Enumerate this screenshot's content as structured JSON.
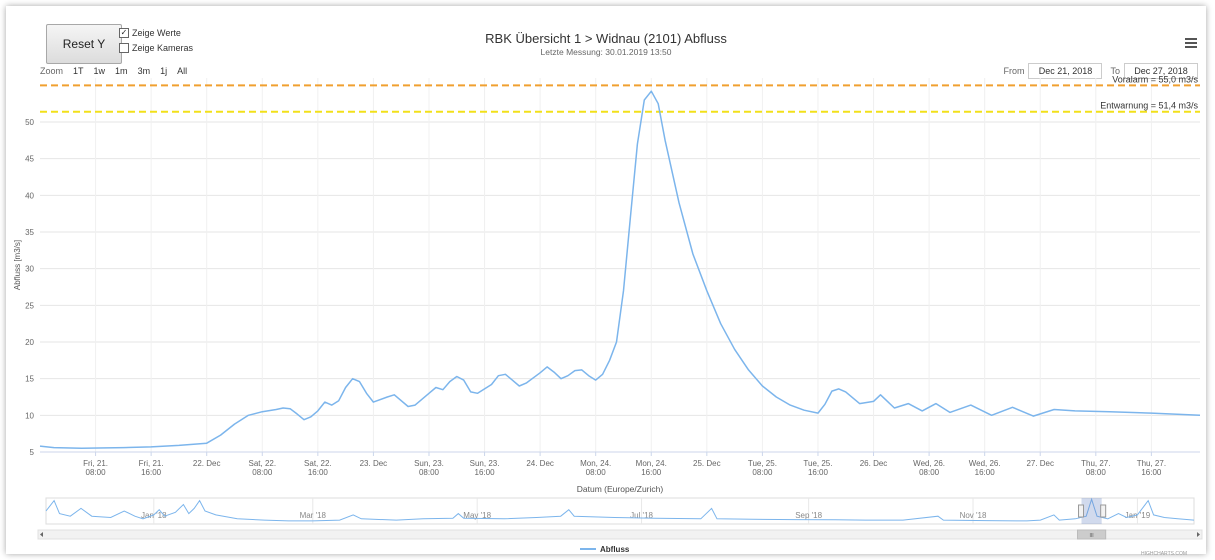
{
  "toolbar": {
    "reset_label": "Reset Y",
    "show_values_label": "Zeige Werte",
    "show_values_checked": true,
    "show_cameras_label": "Zeige Kameras",
    "show_cameras_checked": false
  },
  "menu_icon": "hamburger-menu-icon",
  "zoom": {
    "label": "Zoom",
    "buttons": [
      "1T",
      "1w",
      "1m",
      "3m",
      "1j",
      "All"
    ]
  },
  "range": {
    "from_label": "From",
    "from_value": "Dec 21, 2018",
    "to_label": "To",
    "to_value": "Dec 27, 2018"
  },
  "credits": "HIGHCHARTS.COM",
  "chart_data": {
    "type": "line",
    "title": "RBK Übersicht 1 > Widnau (2101) Abfluss",
    "subtitle": "Letzte Messung: 30.01.2019 13:50",
    "xlabel": "Datum (Europe/Zurich)",
    "ylabel": "Abfluss [m3/s]",
    "ylim": [
      5,
      56
    ],
    "yticks": [
      5,
      10,
      15,
      20,
      25,
      30,
      35,
      40,
      45,
      50
    ],
    "xlim": [
      "2018-12-21 00:00",
      "2018-12-27 23:00"
    ],
    "grid": true,
    "legend_position": "bottom-center",
    "x_ticks": [
      {
        "x": "2018-12-21 08:00",
        "lines": [
          "Fri, 21.",
          "08:00"
        ]
      },
      {
        "x": "2018-12-21 16:00",
        "lines": [
          "Fri, 21.",
          "16:00"
        ]
      },
      {
        "x": "2018-12-22 00:00",
        "lines": [
          "22. Dec"
        ]
      },
      {
        "x": "2018-12-22 08:00",
        "lines": [
          "Sat, 22.",
          "08:00"
        ]
      },
      {
        "x": "2018-12-22 16:00",
        "lines": [
          "Sat, 22.",
          "16:00"
        ]
      },
      {
        "x": "2018-12-23 00:00",
        "lines": [
          "23. Dec"
        ]
      },
      {
        "x": "2018-12-23 08:00",
        "lines": [
          "Sun, 23.",
          "08:00"
        ]
      },
      {
        "x": "2018-12-23 16:00",
        "lines": [
          "Sun, 23.",
          "16:00"
        ]
      },
      {
        "x": "2018-12-24 00:00",
        "lines": [
          "24. Dec"
        ]
      },
      {
        "x": "2018-12-24 08:00",
        "lines": [
          "Mon, 24.",
          "08:00"
        ]
      },
      {
        "x": "2018-12-24 16:00",
        "lines": [
          "Mon, 24.",
          "16:00"
        ]
      },
      {
        "x": "2018-12-25 00:00",
        "lines": [
          "25. Dec"
        ]
      },
      {
        "x": "2018-12-25 08:00",
        "lines": [
          "Tue, 25.",
          "08:00"
        ]
      },
      {
        "x": "2018-12-25 16:00",
        "lines": [
          "Tue, 25.",
          "16:00"
        ]
      },
      {
        "x": "2018-12-26 00:00",
        "lines": [
          "26. Dec"
        ]
      },
      {
        "x": "2018-12-26 08:00",
        "lines": [
          "Wed, 26.",
          "08:00"
        ]
      },
      {
        "x": "2018-12-26 16:00",
        "lines": [
          "Wed, 26.",
          "16:00"
        ]
      },
      {
        "x": "2018-12-27 00:00",
        "lines": [
          "27. Dec"
        ]
      },
      {
        "x": "2018-12-27 08:00",
        "lines": [
          "Thu, 27.",
          "08:00"
        ]
      },
      {
        "x": "2018-12-27 16:00",
        "lines": [
          "Thu, 27.",
          "16:00"
        ]
      }
    ],
    "thresholds": [
      {
        "label": "Voralarm = 55,0 m3/s",
        "value": 55.0,
        "color": "#f0a030"
      },
      {
        "label": "Entwarnung = 51,4 m3/s",
        "value": 51.4,
        "color": "#f2e01a"
      }
    ],
    "series": [
      {
        "name": "Abfluss",
        "color": "#7cb5ec",
        "points": [
          [
            "2018-12-21 00:00",
            5.8
          ],
          [
            "2018-12-21 02:00",
            5.6
          ],
          [
            "2018-12-21 06:00",
            5.5
          ],
          [
            "2018-12-21 12:00",
            5.6
          ],
          [
            "2018-12-21 16:00",
            5.7
          ],
          [
            "2018-12-21 20:00",
            5.9
          ],
          [
            "2018-12-22 00:00",
            6.2
          ],
          [
            "2018-12-22 02:00",
            7.3
          ],
          [
            "2018-12-22 04:00",
            8.8
          ],
          [
            "2018-12-22 06:00",
            10.0
          ],
          [
            "2018-12-22 08:00",
            10.5
          ],
          [
            "2018-12-22 10:00",
            10.8
          ],
          [
            "2018-12-22 11:00",
            11.0
          ],
          [
            "2018-12-22 12:00",
            10.9
          ],
          [
            "2018-12-22 13:00",
            10.2
          ],
          [
            "2018-12-22 14:00",
            9.4
          ],
          [
            "2018-12-22 15:00",
            9.8
          ],
          [
            "2018-12-22 16:00",
            10.6
          ],
          [
            "2018-12-22 17:00",
            11.8
          ],
          [
            "2018-12-22 18:00",
            11.4
          ],
          [
            "2018-12-22 19:00",
            12.0
          ],
          [
            "2018-12-22 20:00",
            13.8
          ],
          [
            "2018-12-22 21:00",
            15.0
          ],
          [
            "2018-12-22 22:00",
            14.6
          ],
          [
            "2018-12-22 23:00",
            13.0
          ],
          [
            "2018-12-23 00:00",
            11.8
          ],
          [
            "2018-12-23 02:00",
            12.5
          ],
          [
            "2018-12-23 03:00",
            12.8
          ],
          [
            "2018-12-23 05:00",
            11.2
          ],
          [
            "2018-12-23 06:00",
            11.4
          ],
          [
            "2018-12-23 08:00",
            13.0
          ],
          [
            "2018-12-23 09:00",
            13.8
          ],
          [
            "2018-12-23 10:00",
            13.5
          ],
          [
            "2018-12-23 11:00",
            14.6
          ],
          [
            "2018-12-23 12:00",
            15.3
          ],
          [
            "2018-12-23 13:00",
            14.8
          ],
          [
            "2018-12-23 14:00",
            13.2
          ],
          [
            "2018-12-23 15:00",
            13.0
          ],
          [
            "2018-12-23 17:00",
            14.2
          ],
          [
            "2018-12-23 18:00",
            15.4
          ],
          [
            "2018-12-23 19:00",
            15.6
          ],
          [
            "2018-12-23 20:00",
            14.8
          ],
          [
            "2018-12-23 21:00",
            14.0
          ],
          [
            "2018-12-23 22:00",
            14.4
          ],
          [
            "2018-12-24 00:00",
            15.8
          ],
          [
            "2018-12-24 01:00",
            16.6
          ],
          [
            "2018-12-24 02:00",
            15.9
          ],
          [
            "2018-12-24 03:00",
            15.0
          ],
          [
            "2018-12-24 04:00",
            15.4
          ],
          [
            "2018-12-24 05:00",
            16.1
          ],
          [
            "2018-12-24 06:00",
            16.2
          ],
          [
            "2018-12-24 07:00",
            15.4
          ],
          [
            "2018-12-24 08:00",
            14.8
          ],
          [
            "2018-12-24 09:00",
            15.6
          ],
          [
            "2018-12-24 10:00",
            17.5
          ],
          [
            "2018-12-24 11:00",
            20.0
          ],
          [
            "2018-12-24 12:00",
            27.0
          ],
          [
            "2018-12-24 13:00",
            37.0
          ],
          [
            "2018-12-24 14:00",
            47.0
          ],
          [
            "2018-12-24 15:00",
            53.0
          ],
          [
            "2018-12-24 16:00",
            54.2
          ],
          [
            "2018-12-24 17:00",
            52.5
          ],
          [
            "2018-12-24 18:00",
            47.5
          ],
          [
            "2018-12-24 20:00",
            39.0
          ],
          [
            "2018-12-24 22:00",
            32.0
          ],
          [
            "2018-12-25 00:00",
            27.0
          ],
          [
            "2018-12-25 02:00",
            22.5
          ],
          [
            "2018-12-25 04:00",
            19.0
          ],
          [
            "2018-12-25 06:00",
            16.2
          ],
          [
            "2018-12-25 08:00",
            14.0
          ],
          [
            "2018-12-25 10:00",
            12.5
          ],
          [
            "2018-12-25 12:00",
            11.4
          ],
          [
            "2018-12-25 14:00",
            10.7
          ],
          [
            "2018-12-25 16:00",
            10.3
          ],
          [
            "2018-12-25 17:00",
            11.5
          ],
          [
            "2018-12-25 18:00",
            13.3
          ],
          [
            "2018-12-25 19:00",
            13.6
          ],
          [
            "2018-12-25 20:00",
            13.2
          ],
          [
            "2018-12-25 22:00",
            11.6
          ],
          [
            "2018-12-26 00:00",
            11.9
          ],
          [
            "2018-12-26 01:00",
            12.8
          ],
          [
            "2018-12-26 03:00",
            11.0
          ],
          [
            "2018-12-26 05:00",
            11.6
          ],
          [
            "2018-12-26 07:00",
            10.6
          ],
          [
            "2018-12-26 09:00",
            11.6
          ],
          [
            "2018-12-26 11:00",
            10.4
          ],
          [
            "2018-12-26 14:00",
            11.4
          ],
          [
            "2018-12-26 17:00",
            10.0
          ],
          [
            "2018-12-26 20:00",
            11.1
          ],
          [
            "2018-12-26 23:00",
            9.9
          ],
          [
            "2018-12-27 02:00",
            10.8
          ],
          [
            "2018-12-27 05:00",
            10.6
          ],
          [
            "2018-12-27 10:00",
            10.5
          ],
          [
            "2018-12-27 16:00",
            10.3
          ],
          [
            "2018-12-27 23:00",
            10.0
          ]
        ]
      }
    ],
    "navigator": {
      "labels": [
        {
          "x": "2018-01-10",
          "label": "Jan '18"
        },
        {
          "x": "2018-03-10",
          "label": "Mar '18"
        },
        {
          "x": "2018-05-10",
          "label": "May '18"
        },
        {
          "x": "2018-07-10",
          "label": "Jul '18"
        },
        {
          "x": "2018-09-10",
          "label": "Sep '18"
        },
        {
          "x": "2018-11-10",
          "label": "Nov '18"
        },
        {
          "x": "2019-01-10",
          "label": "Jan '19"
        }
      ],
      "range": [
        "2017-12-01",
        "2019-01-31"
      ],
      "selection": [
        "2018-12-21",
        "2018-12-27"
      ],
      "handle_label": "III",
      "points": [
        [
          "2017-12-01",
          0.5
        ],
        [
          "2017-12-04",
          0.9
        ],
        [
          "2017-12-06",
          0.4
        ],
        [
          "2017-12-10",
          0.3
        ],
        [
          "2017-12-14",
          0.6
        ],
        [
          "2017-12-18",
          0.3
        ],
        [
          "2017-12-25",
          0.25
        ],
        [
          "2017-12-30",
          0.5
        ],
        [
          "2018-01-03",
          0.3
        ],
        [
          "2018-01-06",
          0.2
        ],
        [
          "2018-01-10",
          0.35
        ],
        [
          "2018-01-12",
          0.55
        ],
        [
          "2018-01-14",
          0.3
        ],
        [
          "2018-01-18",
          0.45
        ],
        [
          "2018-01-21",
          0.75
        ],
        [
          "2018-01-23",
          0.4
        ],
        [
          "2018-01-25",
          0.6
        ],
        [
          "2018-01-27",
          0.9
        ],
        [
          "2018-01-29",
          0.5
        ],
        [
          "2018-02-02",
          0.35
        ],
        [
          "2018-02-10",
          0.2
        ],
        [
          "2018-02-20",
          0.15
        ],
        [
          "2018-03-01",
          0.12
        ],
        [
          "2018-03-10",
          0.12
        ],
        [
          "2018-03-20",
          0.15
        ],
        [
          "2018-03-25",
          0.35
        ],
        [
          "2018-03-28",
          0.2
        ],
        [
          "2018-04-10",
          0.15
        ],
        [
          "2018-04-20",
          0.2
        ],
        [
          "2018-05-01",
          0.22
        ],
        [
          "2018-05-03",
          0.4
        ],
        [
          "2018-05-05",
          0.22
        ],
        [
          "2018-05-20",
          0.2
        ],
        [
          "2018-06-01",
          0.25
        ],
        [
          "2018-06-10",
          0.3
        ],
        [
          "2018-06-13",
          0.55
        ],
        [
          "2018-06-15",
          0.3
        ],
        [
          "2018-06-30",
          0.25
        ],
        [
          "2018-07-15",
          0.22
        ],
        [
          "2018-08-01",
          0.2
        ],
        [
          "2018-08-05",
          0.6
        ],
        [
          "2018-08-07",
          0.2
        ],
        [
          "2018-08-20",
          0.18
        ],
        [
          "2018-09-05",
          0.17
        ],
        [
          "2018-09-20",
          0.16
        ],
        [
          "2018-10-01",
          0.15
        ],
        [
          "2018-10-15",
          0.15
        ],
        [
          "2018-10-28",
          0.3
        ],
        [
          "2018-10-30",
          0.15
        ],
        [
          "2018-11-15",
          0.13
        ],
        [
          "2018-11-30",
          0.12
        ],
        [
          "2018-12-05",
          0.15
        ],
        [
          "2018-12-10",
          0.35
        ],
        [
          "2018-12-12",
          0.15
        ],
        [
          "2018-12-18",
          0.2
        ],
        [
          "2018-12-22",
          0.3
        ],
        [
          "2018-12-24",
          0.95
        ],
        [
          "2018-12-26",
          0.3
        ],
        [
          "2018-12-30",
          0.2
        ],
        [
          "2019-01-03",
          0.4
        ],
        [
          "2019-01-06",
          0.25
        ],
        [
          "2019-01-10",
          0.35
        ],
        [
          "2019-01-14",
          0.9
        ],
        [
          "2019-01-16",
          0.35
        ],
        [
          "2019-01-20",
          0.25
        ],
        [
          "2019-01-25",
          0.2
        ],
        [
          "2019-01-31",
          0.15
        ]
      ]
    }
  }
}
